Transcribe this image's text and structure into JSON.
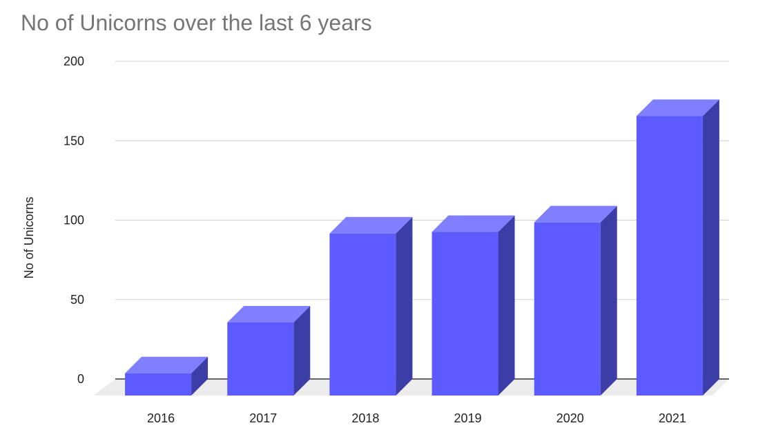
{
  "chart_data": {
    "type": "bar",
    "title": "No of Unicorns over the last 6 years",
    "xlabel": "",
    "ylabel": "No of Unicorns",
    "categories": [
      "2016",
      "2017",
      "2018",
      "2019",
      "2020",
      "2021"
    ],
    "values": [
      14,
      46,
      102,
      103,
      109,
      176
    ],
    "ylim": [
      0,
      200
    ],
    "yticks": [
      0,
      50,
      100,
      150,
      200
    ],
    "grid": true,
    "legend": "none",
    "style": "3d",
    "colors": {
      "bar_front": "#5b5bff",
      "bar_top": "#7f7fff",
      "bar_side": "#3d3da8",
      "floor": "#ececec"
    }
  }
}
